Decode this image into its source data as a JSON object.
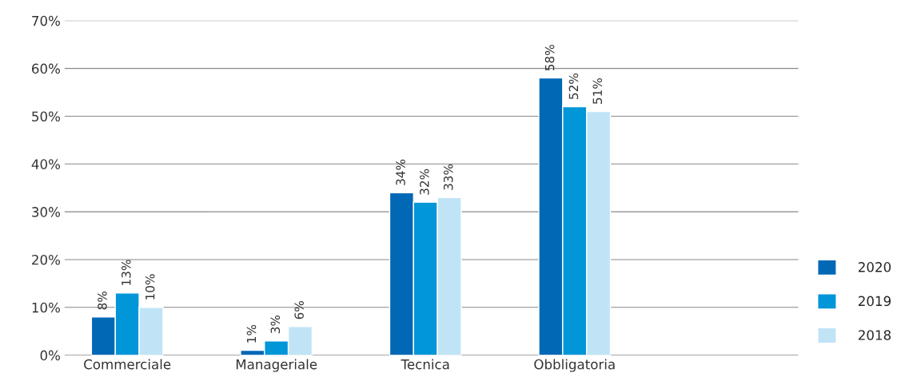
{
  "chart_data": {
    "type": "bar",
    "categories": [
      "Commerciale",
      "Manageriale",
      "Tecnica",
      "Obbligatoria"
    ],
    "series": [
      {
        "name": "2020",
        "color": "#0068b5",
        "values": [
          8,
          1,
          34,
          58
        ],
        "value_labels": [
          "8%",
          "1%",
          "34%",
          "58%"
        ]
      },
      {
        "name": "2019",
        "color": "#0096d8",
        "values": [
          13,
          3,
          32,
          52
        ],
        "value_labels": [
          "13%",
          "3%",
          "32%",
          "52%"
        ]
      },
      {
        "name": "2018",
        "color": "#c0e4f6",
        "values": [
          10,
          6,
          33,
          51
        ],
        "value_labels": [
          "10%",
          "6%",
          "33%",
          "51%"
        ]
      }
    ],
    "ylim": [
      0,
      70
    ],
    "yticks": [
      {
        "value": 0,
        "label": "0%"
      },
      {
        "value": 10,
        "label": "10%"
      },
      {
        "value": 20,
        "label": "20%"
      },
      {
        "value": 30,
        "label": "30%"
      },
      {
        "value": 40,
        "label": "40%"
      },
      {
        "value": 50,
        "label": "50%"
      },
      {
        "value": 60,
        "label": "60%"
      },
      {
        "value": 70,
        "label": "70%"
      }
    ],
    "grid": "y",
    "legend": "bottom right"
  }
}
